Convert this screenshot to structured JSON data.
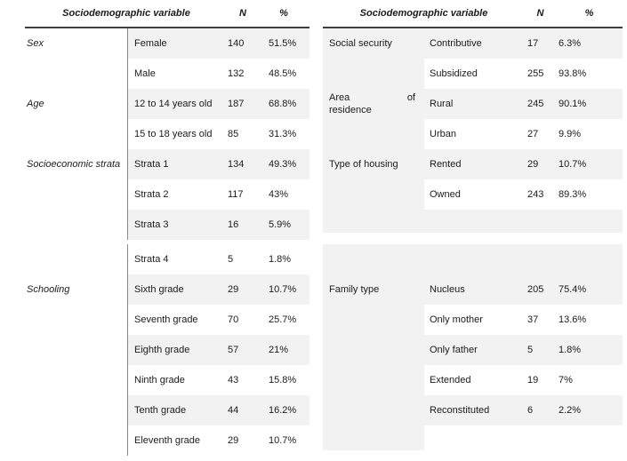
{
  "left_table": {
    "header": {
      "variable": "Sociodemographic variable",
      "n": "N",
      "pct": "%"
    },
    "block1": {
      "rows": [
        {
          "category": "Sex",
          "label": "Female",
          "n": "140",
          "pct": "51.5%"
        },
        {
          "category": "",
          "label": "Male",
          "n": "132",
          "pct": "48.5%"
        },
        {
          "category": "Age",
          "label": "12 to 14 years old",
          "n": "187",
          "pct": "68.8%"
        },
        {
          "category": "",
          "label": "15 to 18 years old",
          "n": "85",
          "pct": "31.3%"
        },
        {
          "category": "Socioeconomic strata",
          "label": "Strata 1",
          "n": "134",
          "pct": "49.3%"
        },
        {
          "category": "",
          "label": "Strata 2",
          "n": "117",
          "pct": "43%"
        },
        {
          "category": "",
          "label": "Strata 3",
          "n": "16",
          "pct": "5.9%"
        }
      ]
    },
    "block2": {
      "rows": [
        {
          "category": "",
          "label": "Strata 4",
          "n": "5",
          "pct": "1.8%"
        },
        {
          "category": "Schooling",
          "label": "Sixth grade",
          "n": "29",
          "pct": "10.7%"
        },
        {
          "category": "",
          "label": "Seventh grade",
          "n": "70",
          "pct": "25.7%"
        },
        {
          "category": "",
          "label": "Eighth grade",
          "n": "57",
          "pct": "21%"
        },
        {
          "category": "",
          "label": "Ninth grade",
          "n": "43",
          "pct": "15.8%"
        },
        {
          "category": "",
          "label": "Tenth grade",
          "n": "44",
          "pct": "16.2%"
        },
        {
          "category": "",
          "label": "Eleventh grade",
          "n": "29",
          "pct": "10.7%"
        }
      ]
    }
  },
  "right_table": {
    "header": {
      "variable": "Sociodemographic variable",
      "n": "N",
      "pct": "%"
    },
    "block1": {
      "rows": [
        {
          "category": "Social security",
          "label": "Contributive",
          "n": "17",
          "pct": "6.3%"
        },
        {
          "category": "",
          "label": "Subsidized",
          "n": "255",
          "pct": "93.8%"
        },
        {
          "category": {
            "word1": "Area",
            "word2": "of",
            "line2": "residence"
          },
          "label": "Rural",
          "n": "245",
          "pct": "90.1%"
        },
        {
          "category": "",
          "label": "Urban",
          "n": "27",
          "pct": "9.9%"
        },
        {
          "category": "Type of housing",
          "label": "Rented",
          "n": "29",
          "pct": "10.7%"
        },
        {
          "category": "",
          "label": "Owned",
          "n": "243",
          "pct": "89.3%"
        }
      ]
    },
    "block2": {
      "rows": [
        {
          "category": "Family type",
          "label": "Nucleus",
          "n": "205",
          "pct": "75.4%"
        },
        {
          "category": "",
          "label": "Only mother",
          "n": "37",
          "pct": "13.6%"
        },
        {
          "category": "",
          "label": "Only father",
          "n": "5",
          "pct": "1.8%"
        },
        {
          "category": "",
          "label": "Extended",
          "n": "19",
          "pct": "7%"
        },
        {
          "category": "",
          "label": "Reconstituted",
          "n": "6",
          "pct": "2.2%"
        }
      ]
    }
  }
}
